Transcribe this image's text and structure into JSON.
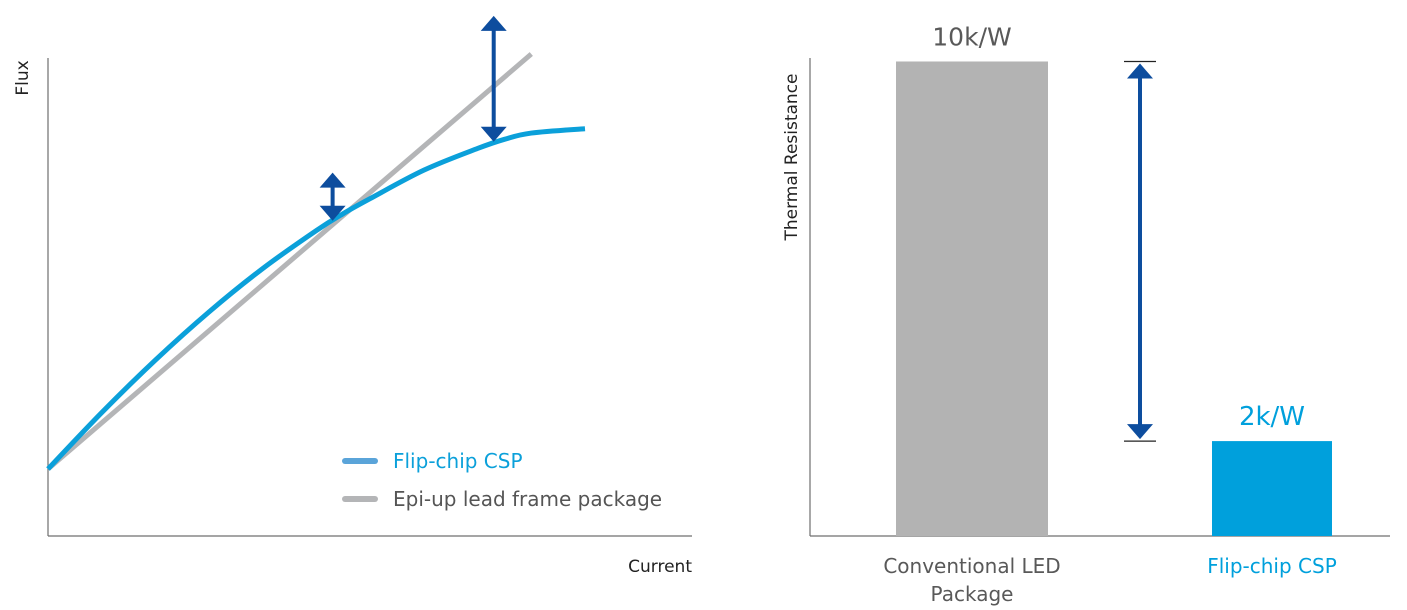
{
  "chart_data": [
    {
      "type": "line",
      "xlabel": "Current",
      "ylabel": "Flux",
      "xlim": [
        0,
        100
      ],
      "ylim": [
        0,
        100
      ],
      "series": [
        {
          "name": "Flip-chip CSP",
          "color": "#0ba0da",
          "legend_color": "#5aa4d9",
          "x": [
            0,
            10,
            20,
            30,
            40,
            50,
            55,
            60,
            70,
            80,
            85,
            90,
            100
          ],
          "y": [
            13.9,
            25.6,
            36.5,
            46.5,
            55.5,
            63.4,
            66.9,
            70.0,
            75.9,
            80.4,
            82.3,
            83.6,
            84.5
          ]
        },
        {
          "name": "Epi-up lead frame package",
          "color": "#b4b5b7",
          "legend_color": "#b4b5b7",
          "x": [
            0,
            90
          ],
          "y": [
            13.9,
            100
          ]
        }
      ],
      "arrows": [
        {
          "x": 53,
          "y_low": 65.4,
          "y_high": 75.4,
          "color": "#0d4d9e"
        },
        {
          "x": 83,
          "y_low": 81.8,
          "y_high": 107.9,
          "color": "#0d4d9e"
        }
      ],
      "legend": {
        "placement": "bottom-right"
      }
    },
    {
      "type": "bar",
      "ylabel": "Thermal Resistance",
      "ylim": [
        0,
        10.2
      ],
      "categories": [
        "Conventional LED\nPackage",
        "Flip-chip CSP"
      ],
      "category_lines": [
        [
          "Conventional LED",
          "Package"
        ],
        [
          "Flip-chip CSP"
        ]
      ],
      "values": [
        10,
        2
      ],
      "data_labels": [
        "10k/W",
        "2k/W"
      ],
      "colors": [
        "#b3b3b3",
        "#00a0dc"
      ],
      "label_colors": [
        "#595959",
        "#00a0dc"
      ],
      "arrow": {
        "from": 10,
        "to": 2,
        "color": "#0d4d9e"
      }
    }
  ]
}
